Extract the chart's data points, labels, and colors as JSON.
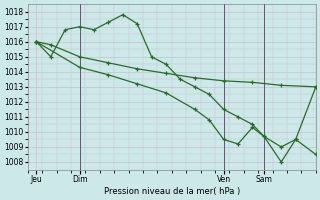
{
  "xlabel": "Pression niveau de la mer( hPa )",
  "ylim": [
    1007.5,
    1018.5
  ],
  "yticks": [
    1008,
    1009,
    1010,
    1011,
    1012,
    1013,
    1014,
    1015,
    1016,
    1017,
    1018
  ],
  "background_color": "#cce8e8",
  "grid_color": "#c8c0d0",
  "line_color": "#2a6b2a",
  "xlim": [
    0,
    100
  ],
  "day_positions": [
    3,
    18,
    68,
    82
  ],
  "day_labels": [
    "Jeu",
    "Dim",
    "Ven",
    "Sam"
  ],
  "vlines": [
    18,
    68,
    82
  ],
  "line1_x": [
    3,
    8,
    18,
    28,
    38,
    48,
    58,
    68,
    78,
    88,
    100
  ],
  "line1_y": [
    1016.0,
    1015.8,
    1015.0,
    1014.6,
    1014.2,
    1013.9,
    1013.6,
    1013.4,
    1013.3,
    1013.1,
    1013.0
  ],
  "line2_x": [
    3,
    8,
    13,
    18,
    23,
    28,
    33,
    38,
    43,
    48,
    53,
    58,
    63,
    68,
    73,
    78,
    82,
    88,
    93,
    100
  ],
  "line2_y": [
    1016.0,
    1015.0,
    1016.8,
    1017.0,
    1016.8,
    1017.3,
    1017.8,
    1017.2,
    1015.0,
    1014.5,
    1013.5,
    1013.0,
    1012.5,
    1011.5,
    1011.0,
    1010.5,
    1009.7,
    1008.0,
    1009.5,
    1008.5
  ],
  "line3_x": [
    3,
    18,
    28,
    38,
    48,
    58,
    63,
    68,
    73,
    78,
    82,
    88,
    93,
    100
  ],
  "line3_y": [
    1016.0,
    1014.3,
    1013.8,
    1013.2,
    1012.6,
    1011.5,
    1010.8,
    1009.5,
    1009.2,
    1010.3,
    1009.7,
    1009.0,
    1009.5,
    1013.0
  ]
}
